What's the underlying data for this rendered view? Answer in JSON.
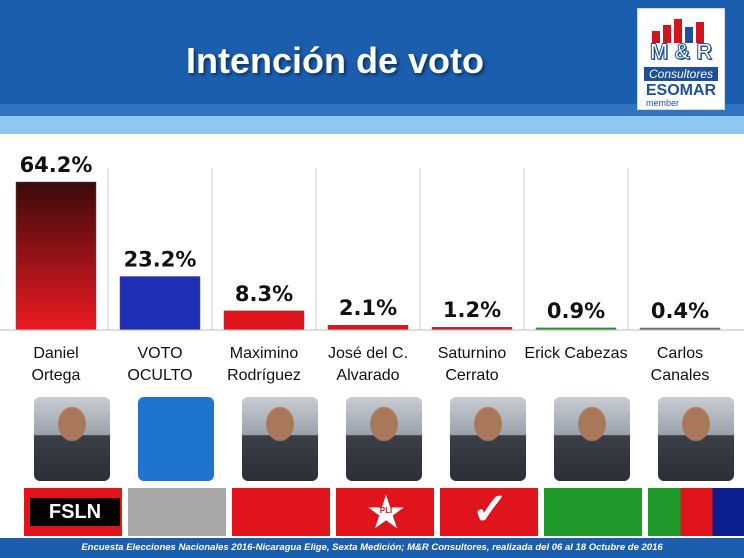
{
  "header": {
    "title": "Intención de voto",
    "logo": {
      "line1": "M & R",
      "line2": "Consultores",
      "line3": "ESOMAR",
      "line4": "member"
    }
  },
  "chart_data": {
    "type": "bar",
    "title": "Intención de voto",
    "categories": [
      "Daniel Ortega",
      "VOTO OCULTO",
      "Maximino Rodríguez",
      "José del C. Alvarado",
      "Saturnino Cerrato",
      "Erick Cabezas",
      "Carlos Canales"
    ],
    "values": [
      64.2,
      23.2,
      8.3,
      2.1,
      1.2,
      0.9,
      0.4
    ],
    "value_labels": [
      "64.2%",
      "23.2%",
      "8.3%",
      "2.1%",
      "1.2%",
      "0.9%",
      "0.4%"
    ],
    "ylim": [
      0,
      64.2
    ],
    "grid": true,
    "colors": [
      "#c0131b",
      "#1e2fb8",
      "#e0141c",
      "#e0141c",
      "#e0141c",
      "#1f9a2a",
      "#777777"
    ]
  },
  "candidates": [
    {
      "line1": "Daniel",
      "line2": "Ortega",
      "photo": "daniel-ortega-photo",
      "party": "FSLN",
      "party_colors": [
        "#e0141c",
        "#000000"
      ]
    },
    {
      "line1": "VOTO",
      "line2": "OCULTO",
      "photo": "blank-blue-tile",
      "party": "",
      "party_colors": [
        "#a8a8a8"
      ]
    },
    {
      "line1": "Maximino",
      "line2": "Rodríguez",
      "photo": "maximino-rodriguez-photo",
      "party": "",
      "party_colors": [
        "#e0141c"
      ]
    },
    {
      "line1": "José del C.",
      "line2": "Alvarado",
      "photo": "jose-alvarado-photo",
      "party": "PLI",
      "party_colors": [
        "#e0141c",
        "#ffffff"
      ]
    },
    {
      "line1": "Saturnino",
      "line2": "Cerrato",
      "photo": "saturnino-cerrato-photo",
      "party": "",
      "party_colors": [
        "#e0141c",
        "#ffffff"
      ]
    },
    {
      "line1": "Erick Cabezas",
      "line2": "",
      "photo": "erick-cabezas-photo",
      "party": "",
      "party_colors": [
        "#1f9a2a"
      ]
    },
    {
      "line1": "Carlos",
      "line2": "Canales",
      "photo": "carlos-canales-photo",
      "party": "",
      "party_colors": [
        "#1f9a2a",
        "#e0141c",
        "#0c1f8f"
      ]
    }
  ],
  "footer": {
    "text": "Encuesta Elecciones Nacionales 2016-Nicaragua Elige, Sexta Medición; M&R Consultores, realizada del 06 al 18 Octubre de 2016"
  }
}
